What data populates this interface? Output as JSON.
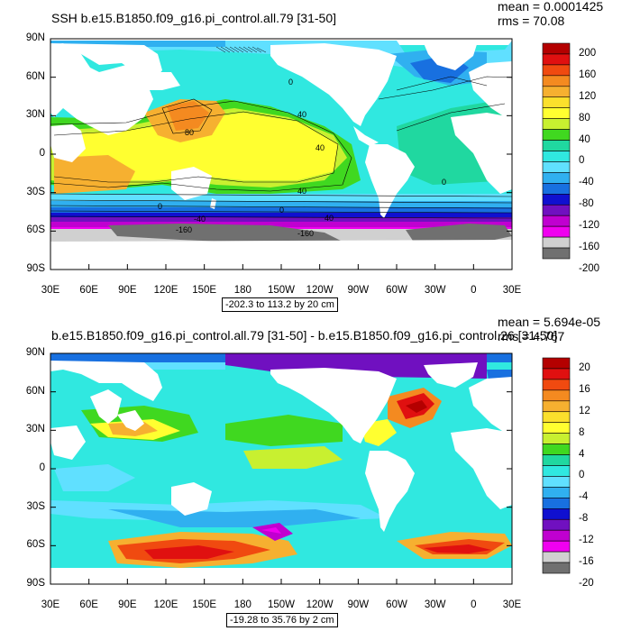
{
  "panels": [
    {
      "title": "SSH b.e15.B1850.f09_g16.pi_control.all.79 [31-50]",
      "mean_text": "mean = 0.0001425",
      "rms_text": "rms = 70.08",
      "range_text": "-202.3 to 113.2 by 20 cm",
      "lat_labels": [
        "90N",
        "60N",
        "30N",
        "0",
        "30S",
        "60S",
        "90S"
      ],
      "lon_labels": [
        "30E",
        "60E",
        "90E",
        "120E",
        "150E",
        "180",
        "150W",
        "120W",
        "90W",
        "60W",
        "30W",
        "0",
        "30E"
      ],
      "colorbar_labels": [
        "200",
        "160",
        "120",
        "80",
        "40",
        "0",
        "-40",
        "-80",
        "-120",
        "-160",
        "-200"
      ],
      "contour_labels": [
        "80",
        "40",
        "40",
        "40",
        "0",
        "0",
        "0",
        "40",
        "-160",
        "-160",
        "-40",
        "0"
      ],
      "colors": [
        "#b40000",
        "#e01010",
        "#f04a10",
        "#f48a20",
        "#f6b030",
        "#fbe02c",
        "#ffff30",
        "#c8f030",
        "#40d820",
        "#20d8a0",
        "#30e8e0",
        "#60e0ff",
        "#30b0f0",
        "#1870e0",
        "#1010d0",
        "#7010c0",
        "#c000d0",
        "#f000f0",
        "#d0d0d0",
        "#707070"
      ]
    },
    {
      "title": "b.e15.B1850.f09_g16.pi_control.all.79 [31-50] - b.e15.B1850.f09_g16.pi_control.26 [31-50]",
      "mean_text": "mean = 5.694e-05",
      "rms_text": "rms = 4.767",
      "range_text": "-19.28 to 35.76 by 2 cm",
      "lat_labels": [
        "90N",
        "60N",
        "30N",
        "0",
        "30S",
        "60S",
        "90S"
      ],
      "lon_labels": [
        "30E",
        "60E",
        "90E",
        "120E",
        "150E",
        "180",
        "150W",
        "120W",
        "90W",
        "60W",
        "30W",
        "0",
        "30E"
      ],
      "colorbar_labels": [
        "20",
        "16",
        "12",
        "8",
        "4",
        "0",
        "-4",
        "-8",
        "-12",
        "-16",
        "-20"
      ],
      "colors": [
        "#b40000",
        "#e01010",
        "#f04a10",
        "#f48a20",
        "#f6b030",
        "#fbe02c",
        "#ffff30",
        "#c8f030",
        "#40d820",
        "#20d8a0",
        "#30e8e0",
        "#60e0ff",
        "#30b0f0",
        "#1870e0",
        "#1010d0",
        "#7010c0",
        "#c000d0",
        "#f000f0",
        "#d0d0d0",
        "#707070"
      ]
    }
  ]
}
